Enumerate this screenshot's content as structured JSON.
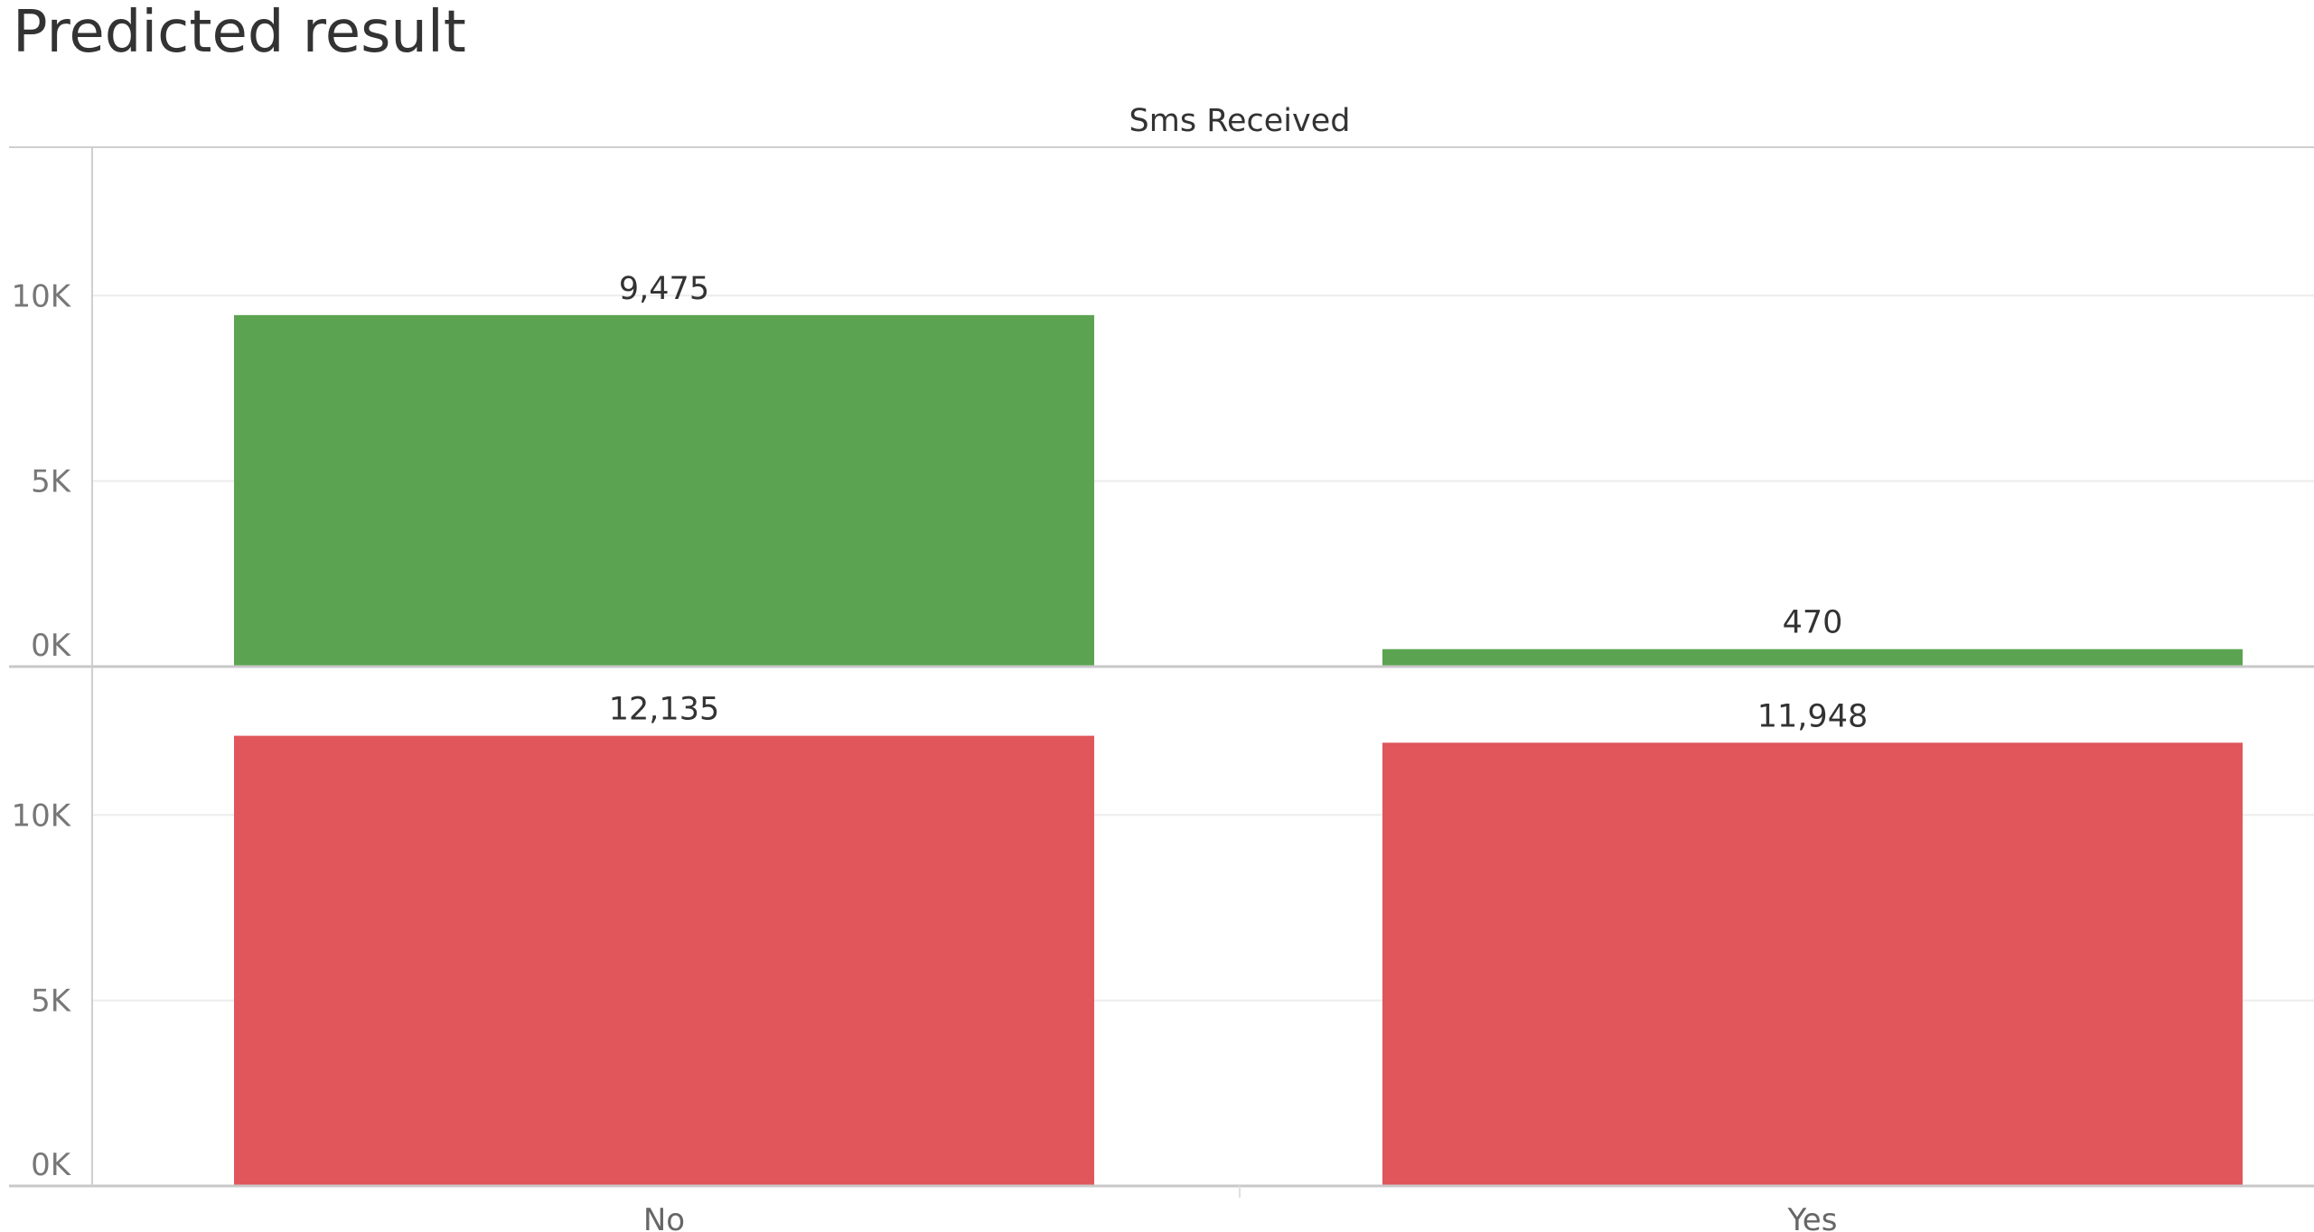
{
  "page": {
    "title": "Predicted result"
  },
  "chart_data": {
    "type": "bar",
    "title": "Predicted result",
    "column_header": "Sms Received",
    "categories": [
      "No",
      "Yes"
    ],
    "ylim": [
      0,
      14000
    ],
    "yticks": [
      0,
      5000,
      10000
    ],
    "ytick_labels": [
      "0K",
      "5K",
      "10K"
    ],
    "grid": true,
    "panels": [
      {
        "color": "#5ba351",
        "values": [
          9475,
          470
        ],
        "labels": [
          "9,475",
          "470"
        ]
      },
      {
        "color": "#e0565b",
        "values": [
          12135,
          11948
        ],
        "labels": [
          "12,135",
          "11,948"
        ]
      }
    ]
  }
}
